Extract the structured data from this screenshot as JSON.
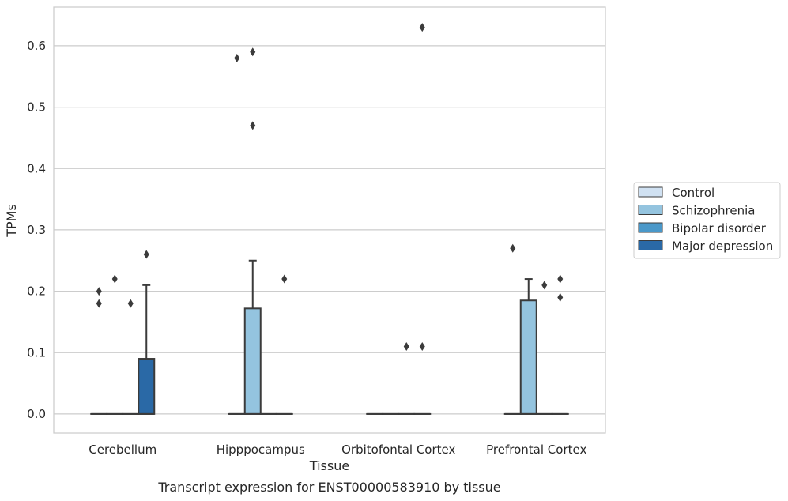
{
  "chart_data": {
    "type": "box",
    "title": "",
    "caption": "Transcript expression for ENST00000583910 by tissue",
    "xlabel": "Tissue",
    "ylabel": "TPMs",
    "ylim": [
      -0.031,
      0.663
    ],
    "yticks": [
      0.0,
      0.1,
      0.2,
      0.3,
      0.4,
      0.5,
      0.6
    ],
    "ytick_labels": [
      "0.0",
      "0.1",
      "0.2",
      "0.3",
      "0.4",
      "0.5",
      "0.6"
    ],
    "grid": "horizontal",
    "legend_position": "right",
    "categories": [
      "Cerebellum",
      "Hipppocampus",
      "Orbitofontal Cortex",
      "Prefrontal Cortex"
    ],
    "series": [
      {
        "name": "Control",
        "color": "#d0e1f2",
        "boxes": [
          {
            "q1": 0,
            "median": 0,
            "q3": 0,
            "whisker_low": 0,
            "whisker_high": 0,
            "outliers": [
              0.18,
              0.2
            ]
          },
          {
            "q1": 0,
            "median": 0,
            "q3": 0,
            "whisker_low": 0,
            "whisker_high": 0,
            "outliers": [
              0.58
            ]
          },
          {
            "q1": 0,
            "median": 0,
            "q3": 0,
            "whisker_low": 0,
            "whisker_high": 0,
            "outliers": []
          },
          {
            "q1": 0,
            "median": 0,
            "q3": 0,
            "whisker_low": 0,
            "whisker_high": 0,
            "outliers": [
              0.27
            ]
          }
        ]
      },
      {
        "name": "Schizophrenia",
        "color": "#94c4df",
        "boxes": [
          {
            "q1": 0,
            "median": 0,
            "q3": 0,
            "whisker_low": 0,
            "whisker_high": 0,
            "outliers": [
              0.22
            ]
          },
          {
            "q1": 0,
            "median": 0,
            "q3": 0.172,
            "whisker_low": 0,
            "whisker_high": 0.25,
            "outliers": [
              0.47,
              0.59
            ]
          },
          {
            "q1": 0,
            "median": 0,
            "q3": 0,
            "whisker_low": 0,
            "whisker_high": 0,
            "outliers": []
          },
          {
            "q1": 0,
            "median": 0,
            "q3": 0.185,
            "whisker_low": 0,
            "whisker_high": 0.22,
            "outliers": []
          }
        ]
      },
      {
        "name": "Bipolar disorder",
        "color": "#4a98c9",
        "boxes": [
          {
            "q1": 0,
            "median": 0,
            "q3": 0,
            "whisker_low": 0,
            "whisker_high": 0,
            "outliers": [
              0.18
            ]
          },
          {
            "q1": 0,
            "median": 0,
            "q3": 0,
            "whisker_low": 0,
            "whisker_high": 0,
            "outliers": []
          },
          {
            "q1": 0,
            "median": 0,
            "q3": 0,
            "whisker_low": 0,
            "whisker_high": 0,
            "outliers": [
              0.11
            ]
          },
          {
            "q1": 0,
            "median": 0,
            "q3": 0,
            "whisker_low": 0,
            "whisker_high": 0,
            "outliers": [
              0.21
            ]
          }
        ]
      },
      {
        "name": "Major depression",
        "color": "#2a69a6",
        "boxes": [
          {
            "q1": 0,
            "median": 0,
            "q3": 0.09,
            "whisker_low": 0,
            "whisker_high": 0.21,
            "outliers": [
              0.26
            ]
          },
          {
            "q1": 0,
            "median": 0,
            "q3": 0,
            "whisker_low": 0,
            "whisker_high": 0,
            "outliers": [
              0.22
            ]
          },
          {
            "q1": 0,
            "median": 0,
            "q3": 0,
            "whisker_low": 0,
            "whisker_high": 0,
            "outliers": [
              0.11,
              0.63
            ]
          },
          {
            "q1": 0,
            "median": 0,
            "q3": 0,
            "whisker_low": 0,
            "whisker_high": 0,
            "outliers": [
              0.19,
              0.22
            ]
          }
        ]
      }
    ]
  }
}
